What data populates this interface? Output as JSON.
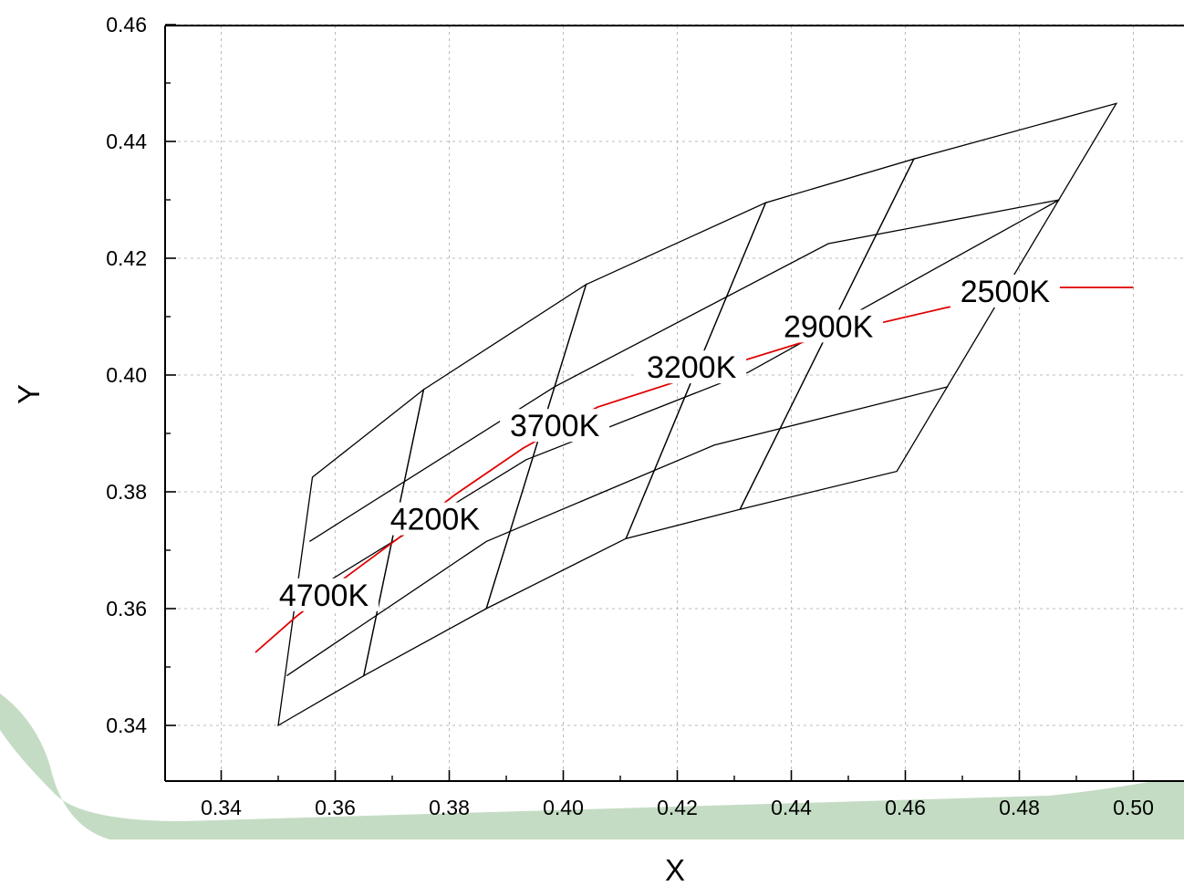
{
  "chart_data": {
    "type": "line",
    "xlabel": "X",
    "ylabel": "Y",
    "xlim": [
      0.33,
      0.505
    ],
    "ylim": [
      0.33,
      0.46
    ],
    "xticks": [
      "0.34",
      "0.36",
      "0.38",
      "0.40",
      "0.42",
      "0.44",
      "0.46",
      "0.48",
      "0.50"
    ],
    "yticks": [
      "0.34",
      "0.36",
      "0.38",
      "0.40",
      "0.42",
      "0.44",
      "0.46"
    ],
    "grid": true,
    "colors": {
      "grid": "#bbbbbb",
      "quadrangles": "#000000",
      "locus": "#e00000",
      "axis": "#000000",
      "backdrop": "#c4dcc4"
    },
    "series": [
      {
        "values": [
          [
            0.346,
            0.3525
          ],
          [
            0.353,
            0.3585
          ],
          [
            0.362,
            0.3655
          ],
          [
            0.371,
            0.372
          ],
          [
            0.381,
            0.3795
          ],
          [
            0.393,
            0.3875
          ],
          [
            0.406,
            0.3945
          ],
          [
            0.425,
            0.4005
          ],
          [
            0.445,
            0.4065
          ],
          [
            0.467,
            0.4115
          ],
          [
            0.485,
            0.415
          ],
          [
            0.5,
            0.415
          ]
        ]
      }
    ],
    "bins": [
      {
        "label": "4700K",
        "corners": [
          [
            0.35,
            0.34
          ],
          [
            0.365,
            0.3485
          ],
          [
            0.3755,
            0.3975
          ],
          [
            0.356,
            0.3825
          ]
        ]
      },
      {
        "label": "4200K",
        "corners": [
          [
            0.365,
            0.3485
          ],
          [
            0.3865,
            0.36
          ],
          [
            0.404,
            0.4155
          ],
          [
            0.3755,
            0.3975
          ]
        ]
      },
      {
        "label": "3700K",
        "corners": [
          [
            0.3865,
            0.36
          ],
          [
            0.411,
            0.372
          ],
          [
            0.4355,
            0.4295
          ],
          [
            0.404,
            0.4155
          ]
        ]
      },
      {
        "label": "3200K",
        "corners": [
          [
            0.411,
            0.372
          ],
          [
            0.431,
            0.377
          ],
          [
            0.4615,
            0.437
          ],
          [
            0.4355,
            0.4295
          ]
        ]
      },
      {
        "label": "2900K",
        "corners": [
          [
            0.431,
            0.377
          ],
          [
            0.4585,
            0.3835
          ],
          [
            0.497,
            0.4465
          ],
          [
            0.4615,
            0.437
          ]
        ]
      }
    ],
    "mid_lines": [
      [
        [
          0.3515,
          0.3485
        ],
        [
          0.3865,
          0.3715
        ],
        [
          0.4265,
          0.388
        ],
        [
          0.4675,
          0.398
        ]
      ],
      [
        [
          0.3535,
          0.3615
        ],
        [
          0.3935,
          0.3855
        ],
        [
          0.4325,
          0.4005
        ],
        [
          0.487,
          0.43
        ]
      ],
      [
        [
          0.3555,
          0.3715
        ],
        [
          0.3985,
          0.398
        ],
        [
          0.4465,
          0.4225
        ],
        [
          0.487,
          0.43
        ]
      ]
    ],
    "labels": [
      {
        "text": "4700K",
        "x": 0.358,
        "y": 0.3605
      },
      {
        "text": "4200K",
        "x": 0.3775,
        "y": 0.3735
      },
      {
        "text": "3700K",
        "x": 0.3985,
        "y": 0.3895
      },
      {
        "text": "3200K",
        "x": 0.4225,
        "y": 0.3995
      },
      {
        "text": "2900K",
        "x": 0.4465,
        "y": 0.4065
      },
      {
        "text": "2500K",
        "x": 0.4775,
        "y": 0.4125
      }
    ]
  }
}
